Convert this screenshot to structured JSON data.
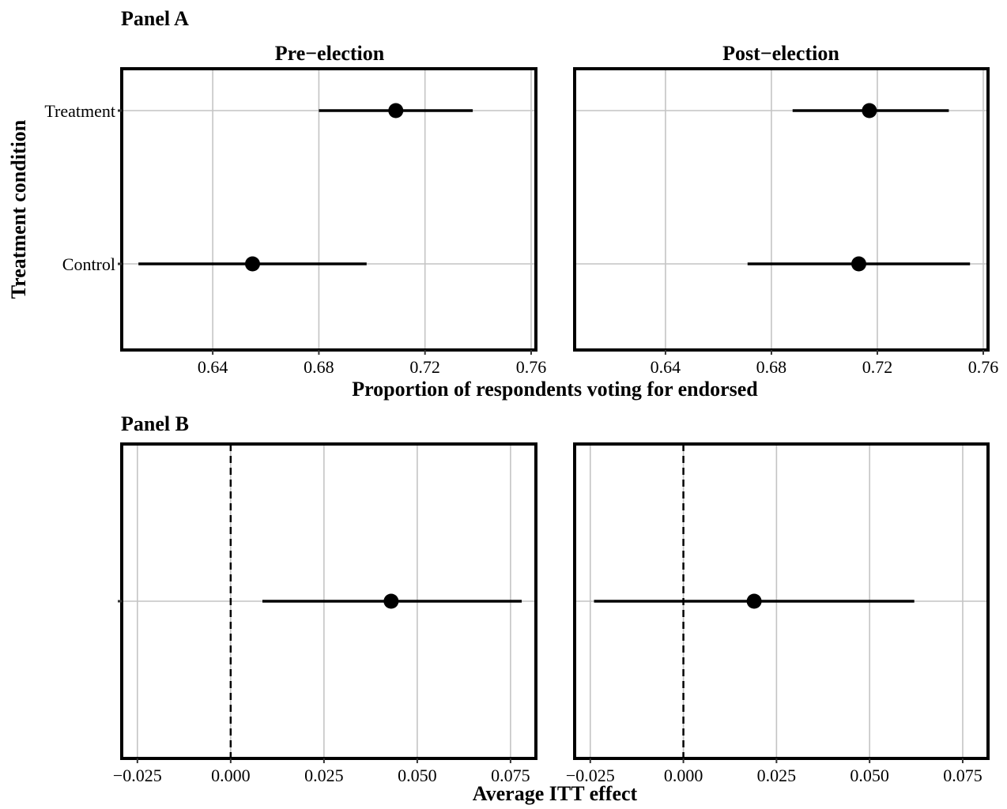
{
  "panels": [
    {
      "label": "Panel A",
      "y_axis_title": "Treatment condition",
      "x_axis_title": "Proportion of respondents voting for endorsed"
    },
    {
      "label": "Panel B",
      "x_axis_title": "Average ITT effect"
    }
  ],
  "chart_data": [
    {
      "type": "scatter",
      "panel": "Panel A",
      "facet": "Pre−election",
      "xlim": [
        0.6057,
        0.7618
      ],
      "x_ticks": [
        0.64,
        0.68,
        0.72,
        0.76
      ],
      "x_tick_labels": [
        "0.64",
        "0.68",
        "0.72",
        "0.76"
      ],
      "categories": [
        "Treatment",
        "Control"
      ],
      "points": [
        {
          "category": "Treatment",
          "estimate": 0.709,
          "ci": [
            0.68,
            0.738
          ]
        },
        {
          "category": "Control",
          "estimate": 0.655,
          "ci": [
            0.612,
            0.698
          ]
        }
      ],
      "grid": true,
      "legend": "none"
    },
    {
      "type": "scatter",
      "panel": "Panel A",
      "facet": "Post−election",
      "xlim": [
        0.6057,
        0.7618
      ],
      "x_ticks": [
        0.64,
        0.68,
        0.72,
        0.76
      ],
      "x_tick_labels": [
        "0.64",
        "0.68",
        "0.72",
        "0.76"
      ],
      "categories": [
        "Treatment",
        "Control"
      ],
      "points": [
        {
          "category": "Treatment",
          "estimate": 0.717,
          "ci": [
            0.688,
            0.747
          ]
        },
        {
          "category": "Control",
          "estimate": 0.713,
          "ci": [
            0.671,
            0.755
          ]
        }
      ],
      "grid": true,
      "legend": "none"
    },
    {
      "type": "scatter",
      "panel": "Panel B",
      "facet": "",
      "xlim": [
        -0.0292,
        0.0818
      ],
      "x_ticks": [
        -0.025,
        0.0,
        0.025,
        0.05,
        0.075
      ],
      "x_tick_labels": [
        "−0.025",
        "0.000",
        "0.025",
        "0.050",
        "0.075"
      ],
      "reference_line": 0,
      "points": [
        {
          "estimate": 0.043,
          "ci": [
            0.0085,
            0.078
          ]
        }
      ],
      "grid": true,
      "legend": "none"
    },
    {
      "type": "scatter",
      "panel": "Panel B",
      "facet": "",
      "xlim": [
        -0.0292,
        0.0818
      ],
      "x_ticks": [
        -0.025,
        0.0,
        0.025,
        0.05,
        0.075
      ],
      "x_tick_labels": [
        "−0.025",
        "0.000",
        "0.025",
        "0.050",
        "0.075"
      ],
      "reference_line": 0,
      "points": [
        {
          "estimate": 0.019,
          "ci": [
            -0.024,
            0.062
          ]
        }
      ],
      "grid": true,
      "legend": "none"
    }
  ]
}
